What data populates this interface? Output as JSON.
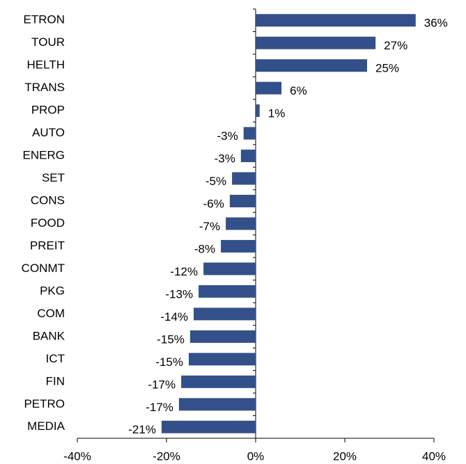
{
  "chart_data": {
    "type": "hbar",
    "categories": [
      "ETRON",
      "TOUR",
      "HELTH",
      "TRANS",
      "PROP",
      "AUTO",
      "ENERG",
      "SET",
      "CONS",
      "FOOD",
      "PREIT",
      "CONMT",
      "PKG",
      "COM",
      "BANK",
      "ICT",
      "FIN",
      "PETRO",
      "MEDIA"
    ],
    "values": [
      35.9,
      26.9,
      25,
      5.8,
      0.9,
      -2.7,
      -3.3,
      -5.3,
      -5.8,
      -6.7,
      -7.8,
      -11.7,
      -12.8,
      -13.9,
      -14.7,
      -15,
      -16.7,
      -17.2,
      -21.1
    ],
    "value_labels": [
      "36%",
      "27%",
      "25%",
      "6%",
      "1%",
      "-3%",
      "-3%",
      "-5%",
      "-6%",
      "-7%",
      "-8%",
      "-12%",
      "-13%",
      "-14%",
      "-15%",
      "-15%",
      "-17%",
      "-17%",
      "-21%"
    ],
    "color": "#34508a",
    "xlim": [
      -40,
      40
    ],
    "xticks": [
      {
        "value": -40,
        "label": "-40%"
      },
      {
        "value": -20,
        "label": "-20%"
      },
      {
        "value": 0,
        "label": "0%"
      },
      {
        "value": 20,
        "label": "20%"
      },
      {
        "value": 40,
        "label": "40%"
      }
    ]
  }
}
